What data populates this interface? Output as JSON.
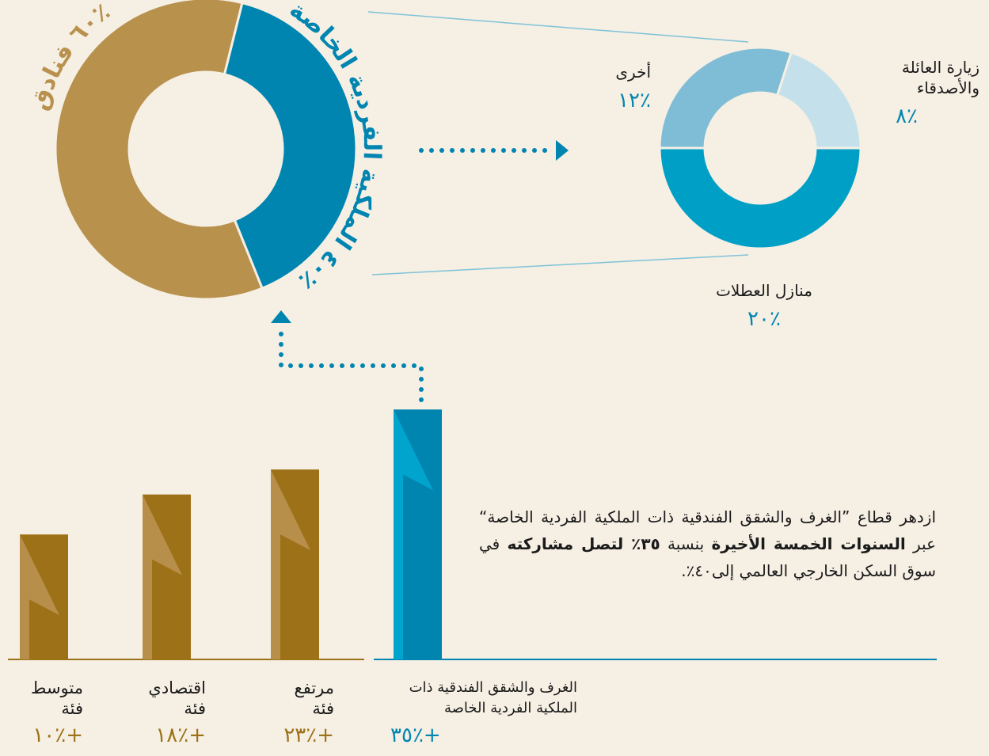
{
  "chart_data": [
    {
      "type": "pie",
      "categories": [
        "فنادق",
        "الملكية الفردية الخاصة"
      ],
      "values": [
        60,
        40
      ],
      "value_labels": [
        "٪٦٠",
        "٪٤٠"
      ],
      "colors": [
        "#b8914d",
        "#0085b1"
      ]
    },
    {
      "type": "pie",
      "categories": [
        "منازل العطلات",
        "أخرى",
        "زيارة العائلة والأصدقاء"
      ],
      "values": [
        20,
        12,
        8
      ],
      "value_labels": [
        "٪٢٠",
        "٪١٢",
        "٪٨"
      ],
      "colors": [
        "#00a0c6",
        "#7fbdd6",
        "#c4e1eb"
      ]
    },
    {
      "type": "bar",
      "categories": [
        "متوسط فئة",
        "اقتصادي فئة",
        "مرتفع فئة",
        "الغرف والشقق الفندقية ذات الملكية الفردية الخاصة"
      ],
      "values": [
        10,
        18,
        23,
        35
      ],
      "value_labels": [
        "+٪١٠",
        "+٪١٨",
        "+٪٢٣",
        "+٪٣٥"
      ],
      "colors": [
        "#9d7118",
        "#9d7118",
        "#9d7118",
        "#0085b1"
      ],
      "ylim": [
        -15,
        36
      ]
    }
  ],
  "paragraph": [
    "ازدهر قطاع ”الغرف والشقق الفندقية ذات الملكية الفردية الخاصة“ عبر",
    "السنوات الخمسة الأخيرة",
    "بنسبة",
    "٣٥٪ لتصل مشاركته",
    "في سوق السكن الخارجي العالمي إلى٤٠٪."
  ]
}
